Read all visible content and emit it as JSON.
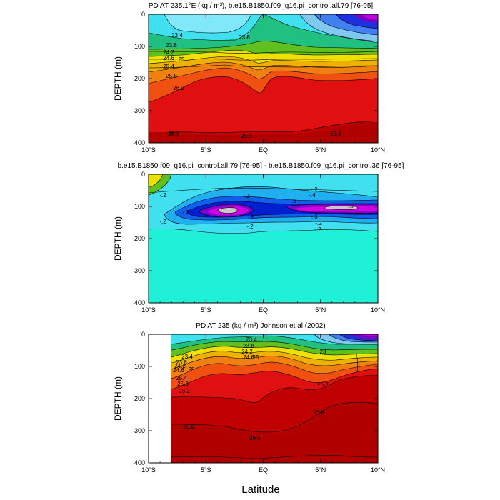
{
  "x_axis_label": "Latitude",
  "chart_data": [
    {
      "type": "contour",
      "title": "PD AT 235.1°E (kg / m³), b.e15.B1850.f09_g16.pi_control.all.79 [76-95]",
      "xlabel": "",
      "ylabel": "DEPTH (m)",
      "xlim": [
        -10,
        10
      ],
      "ylim": [
        400,
        0
      ],
      "xtick_labels": [
        "10°S",
        "5°S",
        "EQ",
        "5°N",
        "10°N"
      ],
      "ytick_labels": [
        "0",
        "100",
        "200",
        "300",
        "400"
      ],
      "contour_labels": [
        "23.4",
        "23.8",
        "23.8",
        "24.2",
        "24.6",
        "25",
        "25.4",
        "25.8",
        "26.2",
        "26.6",
        "26.6",
        "26.6"
      ],
      "colors": [
        "#c00000",
        "#e01010",
        "#f05010",
        "#f08010",
        "#f0b000",
        "#f0e000",
        "#c0e000",
        "#60c020",
        "#20c080",
        "#20d0d0",
        "#40e0f0",
        "#80c8f0",
        "#4080f0",
        "#2030e0",
        "#8000c0",
        "#c000e0"
      ]
    },
    {
      "type": "contour",
      "title": "b.e15.B1850.f09_g16.pi_control.all.79 [76-95] - b.e15.B1850.f09_g16.pi_control.36 [76-95]",
      "xlabel": "",
      "ylabel": "DEPTH (m)",
      "xlim": [
        -10,
        10
      ],
      "ylim": [
        400,
        0
      ],
      "xtick_labels": [
        "10°S",
        "5°S",
        "EQ",
        "5°N",
        "10°N"
      ],
      "ytick_labels": [
        "0",
        "100",
        "200",
        "300",
        "400"
      ],
      "contour_labels": [
        "-.2",
        "-.2",
        "-.4",
        "-.2",
        "-.4",
        "-.6",
        "-.2",
        "-.4",
        "-.6",
        "-.8",
        "-.2",
        "-.2",
        "-.2"
      ],
      "colors": [
        "#20f0d8",
        "#40e0f0",
        "#20b0f0",
        "#1060f0",
        "#0020d0",
        "#8000d0",
        "#d000e0",
        "#c8c8c8"
      ]
    },
    {
      "type": "contour",
      "title": "PD AT 235 (kg / m³) Johnson et al (2002)",
      "xlabel": "",
      "ylabel": "DEPTH (m)",
      "xlim": [
        -10,
        10
      ],
      "ylim": [
        400,
        0
      ],
      "data_xlim": [
        -8,
        10
      ],
      "xtick_labels": [
        "10°S",
        "5°S",
        "EQ",
        "5°N",
        "10°N"
      ],
      "ytick_labels": [
        "0",
        "100",
        "200",
        "300",
        "400"
      ],
      "contour_labels": [
        "23.4",
        "23.8",
        "24.2",
        "24.6",
        "25",
        "25.4",
        "25.8",
        "26.2",
        "23.4",
        "23.8",
        "24.2",
        "24.6",
        "25",
        "23",
        "26.2",
        "26.6",
        "26.6",
        "26.6"
      ],
      "colors": [
        "#c00000",
        "#e01010",
        "#f05010",
        "#f08010",
        "#f0b000",
        "#f0e000",
        "#c0e000",
        "#60c020",
        "#20c080",
        "#20d0d0",
        "#40e0f0",
        "#80c8f0",
        "#4080f0",
        "#2030e0",
        "#8000c0",
        "#c000e0"
      ]
    }
  ]
}
